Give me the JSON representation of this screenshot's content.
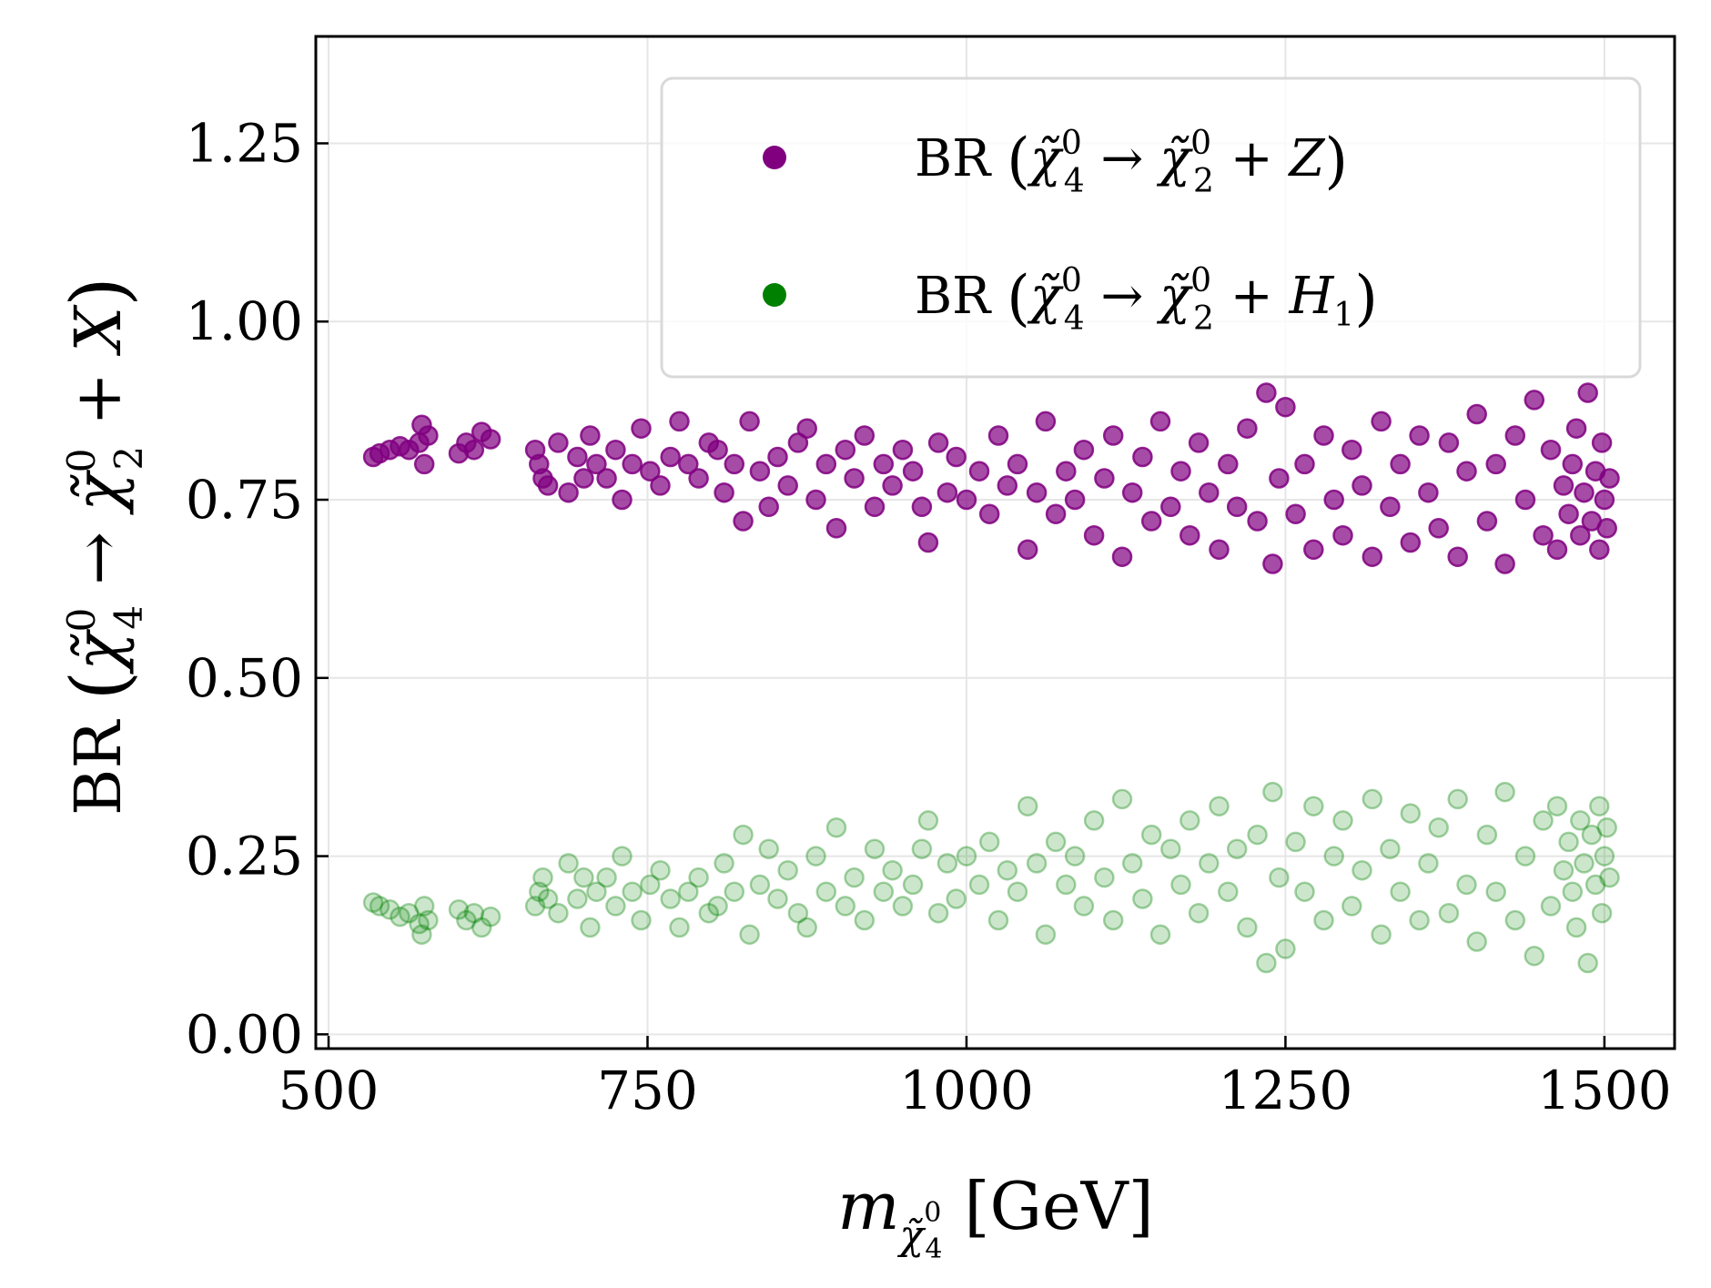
{
  "chart_data": {
    "type": "scatter",
    "xlabel": {
      "main": "m",
      "sub": "χ̃",
      "subsup": "0",
      "subsub": "4",
      "unit": "[GeV]"
    },
    "ylabel": {
      "prefix": "BR ",
      "lhs": "χ̃",
      "lhs_sup": "0",
      "lhs_sub": "4",
      "arrow": " → ",
      "rhs": "χ̃",
      "rhs_sup": "0",
      "rhs_sub": "2",
      "rest": " + X"
    },
    "xlim": [
      490,
      1555
    ],
    "ylim": [
      -0.02,
      1.4
    ],
    "xticks": [
      500,
      750,
      1000,
      1250,
      1500
    ],
    "xtick_labels": [
      "500",
      "750",
      "1000",
      "1250",
      "1500"
    ],
    "yticks": [
      0.0,
      0.25,
      0.5,
      0.75,
      1.0,
      1.25
    ],
    "ytick_labels": [
      "0.00",
      "0.25",
      "0.50",
      "0.75",
      "1.00",
      "1.25"
    ],
    "grid": true,
    "legend_position": "top-right",
    "series": [
      {
        "key": "z",
        "label": {
          "prefix": "BR ",
          "lhs": "χ̃",
          "lhs_sup": "0",
          "lhs_sub": "4",
          "arrow": " → ",
          "rhs": "χ̃",
          "rhs_sup": "0",
          "rhs_sub": "2",
          "plus": " + ",
          "final": "Z",
          "final_sub": ""
        },
        "color": "#800080",
        "opacity": 0.7,
        "points": [
          [
            535,
            0.81
          ],
          [
            540,
            0.815
          ],
          [
            548,
            0.82
          ],
          [
            556,
            0.825
          ],
          [
            563,
            0.82
          ],
          [
            571,
            0.83
          ],
          [
            573,
            0.855
          ],
          [
            575,
            0.8
          ],
          [
            578,
            0.84
          ],
          [
            602,
            0.815
          ],
          [
            608,
            0.83
          ],
          [
            614,
            0.82
          ],
          [
            620,
            0.845
          ],
          [
            627,
            0.835
          ],
          [
            662,
            0.82
          ],
          [
            665,
            0.8
          ],
          [
            668,
            0.78
          ],
          [
            672,
            0.77
          ],
          [
            680,
            0.83
          ],
          [
            688,
            0.76
          ],
          [
            695,
            0.81
          ],
          [
            700,
            0.78
          ],
          [
            705,
            0.84
          ],
          [
            710,
            0.8
          ],
          [
            718,
            0.78
          ],
          [
            725,
            0.82
          ],
          [
            730,
            0.75
          ],
          [
            738,
            0.8
          ],
          [
            745,
            0.85
          ],
          [
            752,
            0.79
          ],
          [
            760,
            0.77
          ],
          [
            768,
            0.81
          ],
          [
            775,
            0.86
          ],
          [
            782,
            0.8
          ],
          [
            790,
            0.78
          ],
          [
            798,
            0.83
          ],
          [
            805,
            0.82
          ],
          [
            810,
            0.76
          ],
          [
            818,
            0.8
          ],
          [
            825,
            0.72
          ],
          [
            830,
            0.86
          ],
          [
            838,
            0.79
          ],
          [
            845,
            0.74
          ],
          [
            852,
            0.81
          ],
          [
            860,
            0.77
          ],
          [
            868,
            0.83
          ],
          [
            875,
            0.85
          ],
          [
            882,
            0.75
          ],
          [
            890,
            0.8
          ],
          [
            898,
            0.71
          ],
          [
            905,
            0.82
          ],
          [
            912,
            0.78
          ],
          [
            920,
            0.84
          ],
          [
            928,
            0.74
          ],
          [
            935,
            0.8
          ],
          [
            942,
            0.77
          ],
          [
            950,
            0.82
          ],
          [
            958,
            0.79
          ],
          [
            965,
            0.74
          ],
          [
            970,
            0.69
          ],
          [
            978,
            0.83
          ],
          [
            985,
            0.76
          ],
          [
            992,
            0.81
          ],
          [
            1000,
            0.75
          ],
          [
            1010,
            0.79
          ],
          [
            1018,
            0.73
          ],
          [
            1025,
            0.84
          ],
          [
            1032,
            0.77
          ],
          [
            1040,
            0.8
          ],
          [
            1048,
            0.68
          ],
          [
            1055,
            0.76
          ],
          [
            1062,
            0.86
          ],
          [
            1070,
            0.73
          ],
          [
            1078,
            0.79
          ],
          [
            1085,
            0.75
          ],
          [
            1092,
            0.82
          ],
          [
            1100,
            0.7
          ],
          [
            1108,
            0.78
          ],
          [
            1115,
            0.84
          ],
          [
            1122,
            0.67
          ],
          [
            1130,
            0.76
          ],
          [
            1138,
            0.81
          ],
          [
            1145,
            0.72
          ],
          [
            1152,
            0.86
          ],
          [
            1160,
            0.74
          ],
          [
            1168,
            0.79
          ],
          [
            1175,
            0.7
          ],
          [
            1182,
            0.83
          ],
          [
            1190,
            0.76
          ],
          [
            1198,
            0.68
          ],
          [
            1205,
            0.8
          ],
          [
            1212,
            0.74
          ],
          [
            1220,
            0.85
          ],
          [
            1228,
            0.72
          ],
          [
            1235,
            0.9
          ],
          [
            1240,
            0.66
          ],
          [
            1245,
            0.78
          ],
          [
            1250,
            0.88
          ],
          [
            1258,
            0.73
          ],
          [
            1265,
            0.8
          ],
          [
            1272,
            0.68
          ],
          [
            1280,
            0.84
          ],
          [
            1288,
            0.75
          ],
          [
            1295,
            0.7
          ],
          [
            1302,
            0.82
          ],
          [
            1310,
            0.77
          ],
          [
            1318,
            0.67
          ],
          [
            1325,
            0.86
          ],
          [
            1332,
            0.74
          ],
          [
            1340,
            0.8
          ],
          [
            1348,
            0.69
          ],
          [
            1355,
            0.84
          ],
          [
            1362,
            0.76
          ],
          [
            1370,
            0.71
          ],
          [
            1378,
            0.83
          ],
          [
            1385,
            0.67
          ],
          [
            1392,
            0.79
          ],
          [
            1400,
            0.87
          ],
          [
            1408,
            0.72
          ],
          [
            1415,
            0.8
          ],
          [
            1422,
            0.66
          ],
          [
            1430,
            0.84
          ],
          [
            1438,
            0.75
          ],
          [
            1445,
            0.89
          ],
          [
            1452,
            0.7
          ],
          [
            1458,
            0.82
          ],
          [
            1463,
            0.68
          ],
          [
            1468,
            0.77
          ],
          [
            1472,
            0.73
          ],
          [
            1475,
            0.8
          ],
          [
            1478,
            0.85
          ],
          [
            1481,
            0.7
          ],
          [
            1484,
            0.76
          ],
          [
            1487,
            0.9
          ],
          [
            1490,
            0.72
          ],
          [
            1493,
            0.79
          ],
          [
            1496,
            0.68
          ],
          [
            1498,
            0.83
          ],
          [
            1500,
            0.75
          ],
          [
            1502,
            0.71
          ],
          [
            1504,
            0.78
          ]
        ]
      },
      {
        "key": "h1",
        "label": {
          "prefix": "BR ",
          "lhs": "χ̃",
          "lhs_sup": "0",
          "lhs_sub": "4",
          "arrow": " → ",
          "rhs": "χ̃",
          "rhs_sup": "0",
          "rhs_sub": "2",
          "plus": " + ",
          "final": "H",
          "final_sub": "1"
        },
        "color": "#008000",
        "opacity": 0.2,
        "points": [
          [
            535,
            0.185
          ],
          [
            540,
            0.18
          ],
          [
            548,
            0.175
          ],
          [
            556,
            0.165
          ],
          [
            563,
            0.17
          ],
          [
            571,
            0.155
          ],
          [
            573,
            0.14
          ],
          [
            575,
            0.18
          ],
          [
            578,
            0.16
          ],
          [
            602,
            0.175
          ],
          [
            608,
            0.16
          ],
          [
            614,
            0.17
          ],
          [
            620,
            0.15
          ],
          [
            627,
            0.165
          ],
          [
            662,
            0.18
          ],
          [
            665,
            0.2
          ],
          [
            668,
            0.22
          ],
          [
            672,
            0.19
          ],
          [
            680,
            0.17
          ],
          [
            688,
            0.24
          ],
          [
            695,
            0.19
          ],
          [
            700,
            0.22
          ],
          [
            705,
            0.15
          ],
          [
            710,
            0.2
          ],
          [
            718,
            0.22
          ],
          [
            725,
            0.18
          ],
          [
            730,
            0.25
          ],
          [
            738,
            0.2
          ],
          [
            745,
            0.16
          ],
          [
            752,
            0.21
          ],
          [
            760,
            0.23
          ],
          [
            768,
            0.19
          ],
          [
            775,
            0.15
          ],
          [
            782,
            0.2
          ],
          [
            790,
            0.22
          ],
          [
            798,
            0.17
          ],
          [
            805,
            0.18
          ],
          [
            810,
            0.24
          ],
          [
            818,
            0.2
          ],
          [
            825,
            0.28
          ],
          [
            830,
            0.14
          ],
          [
            838,
            0.21
          ],
          [
            845,
            0.26
          ],
          [
            852,
            0.19
          ],
          [
            860,
            0.23
          ],
          [
            868,
            0.17
          ],
          [
            875,
            0.15
          ],
          [
            882,
            0.25
          ],
          [
            890,
            0.2
          ],
          [
            898,
            0.29
          ],
          [
            905,
            0.18
          ],
          [
            912,
            0.22
          ],
          [
            920,
            0.16
          ],
          [
            928,
            0.26
          ],
          [
            935,
            0.2
          ],
          [
            942,
            0.23
          ],
          [
            950,
            0.18
          ],
          [
            958,
            0.21
          ],
          [
            965,
            0.26
          ],
          [
            970,
            0.3
          ],
          [
            978,
            0.17
          ],
          [
            985,
            0.24
          ],
          [
            992,
            0.19
          ],
          [
            1000,
            0.25
          ],
          [
            1010,
            0.21
          ],
          [
            1018,
            0.27
          ],
          [
            1025,
            0.16
          ],
          [
            1032,
            0.23
          ],
          [
            1040,
            0.2
          ],
          [
            1048,
            0.32
          ],
          [
            1055,
            0.24
          ],
          [
            1062,
            0.14
          ],
          [
            1070,
            0.27
          ],
          [
            1078,
            0.21
          ],
          [
            1085,
            0.25
          ],
          [
            1092,
            0.18
          ],
          [
            1100,
            0.3
          ],
          [
            1108,
            0.22
          ],
          [
            1115,
            0.16
          ],
          [
            1122,
            0.33
          ],
          [
            1130,
            0.24
          ],
          [
            1138,
            0.19
          ],
          [
            1145,
            0.28
          ],
          [
            1152,
            0.14
          ],
          [
            1160,
            0.26
          ],
          [
            1168,
            0.21
          ],
          [
            1175,
            0.3
          ],
          [
            1182,
            0.17
          ],
          [
            1190,
            0.24
          ],
          [
            1198,
            0.32
          ],
          [
            1205,
            0.2
          ],
          [
            1212,
            0.26
          ],
          [
            1220,
            0.15
          ],
          [
            1228,
            0.28
          ],
          [
            1235,
            0.1
          ],
          [
            1240,
            0.34
          ],
          [
            1245,
            0.22
          ],
          [
            1250,
            0.12
          ],
          [
            1258,
            0.27
          ],
          [
            1265,
            0.2
          ],
          [
            1272,
            0.32
          ],
          [
            1280,
            0.16
          ],
          [
            1288,
            0.25
          ],
          [
            1295,
            0.3
          ],
          [
            1302,
            0.18
          ],
          [
            1310,
            0.23
          ],
          [
            1318,
            0.33
          ],
          [
            1325,
            0.14
          ],
          [
            1332,
            0.26
          ],
          [
            1340,
            0.2
          ],
          [
            1348,
            0.31
          ],
          [
            1355,
            0.16
          ],
          [
            1362,
            0.24
          ],
          [
            1370,
            0.29
          ],
          [
            1378,
            0.17
          ],
          [
            1385,
            0.33
          ],
          [
            1392,
            0.21
          ],
          [
            1400,
            0.13
          ],
          [
            1408,
            0.28
          ],
          [
            1415,
            0.2
          ],
          [
            1422,
            0.34
          ],
          [
            1430,
            0.16
          ],
          [
            1438,
            0.25
          ],
          [
            1445,
            0.11
          ],
          [
            1452,
            0.3
          ],
          [
            1458,
            0.18
          ],
          [
            1463,
            0.32
          ],
          [
            1468,
            0.23
          ],
          [
            1472,
            0.27
          ],
          [
            1475,
            0.2
          ],
          [
            1478,
            0.15
          ],
          [
            1481,
            0.3
          ],
          [
            1484,
            0.24
          ],
          [
            1487,
            0.1
          ],
          [
            1490,
            0.28
          ],
          [
            1493,
            0.21
          ],
          [
            1496,
            0.32
          ],
          [
            1498,
            0.17
          ],
          [
            1500,
            0.25
          ],
          [
            1502,
            0.29
          ],
          [
            1504,
            0.22
          ]
        ]
      }
    ]
  }
}
